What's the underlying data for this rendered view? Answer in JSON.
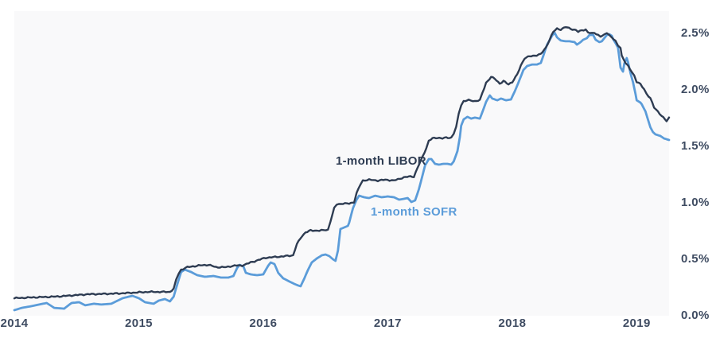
{
  "page": {
    "background": "#ffffff",
    "plot_background": "#f9f9fa"
  },
  "chart_data": {
    "type": "line",
    "title": "",
    "xlabel": "",
    "ylabel": "",
    "grid": "off",
    "legend_position": "inline-annotations",
    "x_axis": {
      "range": [
        2014,
        2019.26
      ],
      "ticks": [
        {
          "label": "2014",
          "value": 2014
        },
        {
          "label": "2015",
          "value": 2015
        },
        {
          "label": "2016",
          "value": 2016
        },
        {
          "label": "2017",
          "value": 2017
        },
        {
          "label": "2018",
          "value": 2018
        },
        {
          "label": "2019",
          "value": 2019
        }
      ]
    },
    "y_axis": {
      "unit": "percent",
      "range": [
        0,
        2.7
      ],
      "ticks": [
        {
          "label": "0.0%",
          "value": 0.0
        },
        {
          "label": "0.5%",
          "value": 0.5
        },
        {
          "label": "1.0%",
          "value": 1.0
        },
        {
          "label": "1.5%",
          "value": 1.5
        },
        {
          "label": "2.0%",
          "value": 2.0
        },
        {
          "label": "2.5%",
          "value": 2.5
        }
      ]
    },
    "series": [
      {
        "name": "1-month LIBOR",
        "color": "#2e3c52",
        "line_width": 2.4,
        "texture": "noisy",
        "points": [
          [
            2014.0,
            0.155
          ],
          [
            2014.14,
            0.162
          ],
          [
            2014.33,
            0.169
          ],
          [
            2014.59,
            0.19
          ],
          [
            2014.84,
            0.197
          ],
          [
            2015.07,
            0.211
          ],
          [
            2015.25,
            0.211
          ],
          [
            2015.28,
            0.239
          ],
          [
            2015.3,
            0.317
          ],
          [
            2015.32,
            0.373
          ],
          [
            2015.34,
            0.408
          ],
          [
            2015.39,
            0.43
          ],
          [
            2015.48,
            0.444
          ],
          [
            2015.56,
            0.451
          ],
          [
            2015.62,
            0.43
          ],
          [
            2015.7,
            0.43
          ],
          [
            2015.77,
            0.444
          ],
          [
            2015.83,
            0.444
          ],
          [
            2015.9,
            0.472
          ],
          [
            2015.96,
            0.493
          ],
          [
            2016.02,
            0.514
          ],
          [
            2016.11,
            0.521
          ],
          [
            2016.18,
            0.528
          ],
          [
            2016.24,
            0.535
          ],
          [
            2016.27,
            0.634
          ],
          [
            2016.31,
            0.704
          ],
          [
            2016.34,
            0.739
          ],
          [
            2016.38,
            0.754
          ],
          [
            2016.45,
            0.754
          ],
          [
            2016.52,
            0.761
          ],
          [
            2016.54,
            0.838
          ],
          [
            2016.57,
            0.951
          ],
          [
            2016.59,
            0.986
          ],
          [
            2016.64,
            0.993
          ],
          [
            2016.69,
            0.993
          ],
          [
            2016.73,
            1.007
          ],
          [
            2016.75,
            1.085
          ],
          [
            2016.78,
            1.162
          ],
          [
            2016.8,
            1.197
          ],
          [
            2016.85,
            1.204
          ],
          [
            2016.92,
            1.197
          ],
          [
            2016.98,
            1.204
          ],
          [
            2017.05,
            1.197
          ],
          [
            2017.13,
            1.225
          ],
          [
            2017.17,
            1.232
          ],
          [
            2017.21,
            1.232
          ],
          [
            2017.24,
            1.31
          ],
          [
            2017.28,
            1.408
          ],
          [
            2017.31,
            1.486
          ],
          [
            2017.33,
            1.549
          ],
          [
            2017.36,
            1.57
          ],
          [
            2017.4,
            1.577
          ],
          [
            2017.44,
            1.57
          ],
          [
            2017.47,
            1.577
          ],
          [
            2017.51,
            1.577
          ],
          [
            2017.53,
            1.613
          ],
          [
            2017.55,
            1.669
          ],
          [
            2017.57,
            1.789
          ],
          [
            2017.59,
            1.866
          ],
          [
            2017.61,
            1.901
          ],
          [
            2017.65,
            1.908
          ],
          [
            2017.7,
            1.901
          ],
          [
            2017.74,
            1.908
          ],
          [
            2017.76,
            1.972
          ],
          [
            2017.79,
            2.063
          ],
          [
            2017.83,
            2.113
          ],
          [
            2017.86,
            2.099
          ],
          [
            2017.9,
            2.056
          ],
          [
            2017.93,
            2.077
          ],
          [
            2017.97,
            2.049
          ],
          [
            2018.0,
            2.07
          ],
          [
            2018.04,
            2.134
          ],
          [
            2018.07,
            2.218
          ],
          [
            2018.1,
            2.282
          ],
          [
            2018.14,
            2.296
          ],
          [
            2018.18,
            2.303
          ],
          [
            2018.23,
            2.317
          ],
          [
            2018.27,
            2.373
          ],
          [
            2018.3,
            2.444
          ],
          [
            2018.33,
            2.514
          ],
          [
            2018.36,
            2.542
          ],
          [
            2018.39,
            2.535
          ],
          [
            2018.43,
            2.556
          ],
          [
            2018.47,
            2.542
          ],
          [
            2018.51,
            2.528
          ],
          [
            2018.53,
            2.514
          ],
          [
            2018.56,
            2.528
          ],
          [
            2018.59,
            2.535
          ],
          [
            2018.61,
            2.507
          ],
          [
            2018.64,
            2.5
          ],
          [
            2018.66,
            2.507
          ],
          [
            2018.69,
            2.486
          ],
          [
            2018.71,
            2.472
          ],
          [
            2018.74,
            2.486
          ],
          [
            2018.76,
            2.507
          ],
          [
            2018.78,
            2.486
          ],
          [
            2018.8,
            2.465
          ],
          [
            2018.83,
            2.43
          ],
          [
            2018.85,
            2.394
          ],
          [
            2018.87,
            2.373
          ],
          [
            2018.88,
            2.303
          ],
          [
            2018.91,
            2.239
          ],
          [
            2018.93,
            2.211
          ],
          [
            2018.96,
            2.162
          ],
          [
            2018.98,
            2.127
          ],
          [
            2019.0,
            2.07
          ],
          [
            2019.03,
            2.049
          ],
          [
            2019.06,
            2.007
          ],
          [
            2019.08,
            1.965
          ],
          [
            2019.11,
            1.923
          ],
          [
            2019.14,
            1.845
          ],
          [
            2019.17,
            1.81
          ],
          [
            2019.2,
            1.768
          ],
          [
            2019.24,
            1.725
          ],
          [
            2019.26,
            1.754
          ]
        ]
      },
      {
        "name": "1-month SOFR",
        "color": "#5b9cd9",
        "line_width": 2.8,
        "texture": "smooth",
        "points": [
          [
            2014.0,
            0.049
          ],
          [
            2014.06,
            0.07
          ],
          [
            2014.14,
            0.085
          ],
          [
            2014.2,
            0.099
          ],
          [
            2014.26,
            0.113
          ],
          [
            2014.32,
            0.07
          ],
          [
            2014.4,
            0.063
          ],
          [
            2014.46,
            0.113
          ],
          [
            2014.52,
            0.12
          ],
          [
            2014.57,
            0.092
          ],
          [
            2014.64,
            0.106
          ],
          [
            2014.7,
            0.099
          ],
          [
            2014.78,
            0.106
          ],
          [
            2014.83,
            0.134
          ],
          [
            2014.87,
            0.155
          ],
          [
            2014.92,
            0.169
          ],
          [
            2014.95,
            0.176
          ],
          [
            2015.0,
            0.155
          ],
          [
            2015.05,
            0.12
          ],
          [
            2015.12,
            0.106
          ],
          [
            2015.16,
            0.134
          ],
          [
            2015.21,
            0.148
          ],
          [
            2015.25,
            0.127
          ],
          [
            2015.28,
            0.169
          ],
          [
            2015.31,
            0.282
          ],
          [
            2015.34,
            0.387
          ],
          [
            2015.37,
            0.408
          ],
          [
            2015.42,
            0.387
          ],
          [
            2015.47,
            0.359
          ],
          [
            2015.53,
            0.345
          ],
          [
            2015.6,
            0.352
          ],
          [
            2015.66,
            0.338
          ],
          [
            2015.72,
            0.338
          ],
          [
            2015.76,
            0.352
          ],
          [
            2015.79,
            0.423
          ],
          [
            2015.81,
            0.451
          ],
          [
            2015.84,
            0.437
          ],
          [
            2015.86,
            0.38
          ],
          [
            2015.9,
            0.366
          ],
          [
            2015.95,
            0.359
          ],
          [
            2016.0,
            0.366
          ],
          [
            2016.04,
            0.444
          ],
          [
            2016.06,
            0.472
          ],
          [
            2016.09,
            0.458
          ],
          [
            2016.12,
            0.38
          ],
          [
            2016.16,
            0.331
          ],
          [
            2016.21,
            0.303
          ],
          [
            2016.25,
            0.282
          ],
          [
            2016.28,
            0.268
          ],
          [
            2016.3,
            0.261
          ],
          [
            2016.33,
            0.331
          ],
          [
            2016.36,
            0.408
          ],
          [
            2016.39,
            0.472
          ],
          [
            2016.43,
            0.507
          ],
          [
            2016.47,
            0.535
          ],
          [
            2016.5,
            0.542
          ],
          [
            2016.53,
            0.528
          ],
          [
            2016.56,
            0.5
          ],
          [
            2016.58,
            0.486
          ],
          [
            2016.6,
            0.577
          ],
          [
            2016.62,
            0.768
          ],
          [
            2016.65,
            0.782
          ],
          [
            2016.68,
            0.796
          ],
          [
            2016.69,
            0.824
          ],
          [
            2016.72,
            0.951
          ],
          [
            2016.75,
            1.028
          ],
          [
            2016.77,
            1.063
          ],
          [
            2016.81,
            1.049
          ],
          [
            2016.85,
            1.042
          ],
          [
            2016.9,
            1.063
          ],
          [
            2016.95,
            1.049
          ],
          [
            2017.0,
            1.056
          ],
          [
            2017.05,
            1.049
          ],
          [
            2017.09,
            1.028
          ],
          [
            2017.13,
            1.035
          ],
          [
            2017.16,
            1.042
          ],
          [
            2017.19,
            1.007
          ],
          [
            2017.22,
            1.021
          ],
          [
            2017.25,
            1.12
          ],
          [
            2017.28,
            1.246
          ],
          [
            2017.3,
            1.331
          ],
          [
            2017.33,
            1.387
          ],
          [
            2017.35,
            1.387
          ],
          [
            2017.38,
            1.345
          ],
          [
            2017.41,
            1.338
          ],
          [
            2017.45,
            1.345
          ],
          [
            2017.48,
            1.345
          ],
          [
            2017.51,
            1.338
          ],
          [
            2017.53,
            1.366
          ],
          [
            2017.56,
            1.458
          ],
          [
            2017.58,
            1.585
          ],
          [
            2017.59,
            1.683
          ],
          [
            2017.61,
            1.739
          ],
          [
            2017.64,
            1.761
          ],
          [
            2017.67,
            1.746
          ],
          [
            2017.7,
            1.754
          ],
          [
            2017.74,
            1.746
          ],
          [
            2017.76,
            1.803
          ],
          [
            2017.79,
            1.894
          ],
          [
            2017.82,
            1.951
          ],
          [
            2017.84,
            1.923
          ],
          [
            2017.88,
            1.908
          ],
          [
            2017.91,
            1.923
          ],
          [
            2017.95,
            1.908
          ],
          [
            2017.99,
            1.915
          ],
          [
            2018.02,
            1.986
          ],
          [
            2018.06,
            2.092
          ],
          [
            2018.09,
            2.176
          ],
          [
            2018.12,
            2.211
          ],
          [
            2018.16,
            2.225
          ],
          [
            2018.2,
            2.225
          ],
          [
            2018.23,
            2.239
          ],
          [
            2018.25,
            2.303
          ],
          [
            2018.28,
            2.401
          ],
          [
            2018.32,
            2.479
          ],
          [
            2018.34,
            2.507
          ],
          [
            2018.36,
            2.465
          ],
          [
            2018.39,
            2.437
          ],
          [
            2018.43,
            2.43
          ],
          [
            2018.46,
            2.43
          ],
          [
            2018.5,
            2.423
          ],
          [
            2018.52,
            2.401
          ],
          [
            2018.55,
            2.423
          ],
          [
            2018.57,
            2.444
          ],
          [
            2018.6,
            2.458
          ],
          [
            2018.62,
            2.486
          ],
          [
            2018.65,
            2.486
          ],
          [
            2018.67,
            2.444
          ],
          [
            2018.7,
            2.423
          ],
          [
            2018.72,
            2.43
          ],
          [
            2018.74,
            2.458
          ],
          [
            2018.76,
            2.486
          ],
          [
            2018.78,
            2.493
          ],
          [
            2018.8,
            2.479
          ],
          [
            2018.81,
            2.451
          ],
          [
            2018.83,
            2.415
          ],
          [
            2018.85,
            2.373
          ],
          [
            2018.86,
            2.289
          ],
          [
            2018.87,
            2.197
          ],
          [
            2018.89,
            2.162
          ],
          [
            2018.9,
            2.232
          ],
          [
            2018.92,
            2.282
          ],
          [
            2018.93,
            2.246
          ],
          [
            2018.95,
            2.148
          ],
          [
            2018.97,
            2.07
          ],
          [
            2018.99,
            1.965
          ],
          [
            2019.0,
            1.908
          ],
          [
            2019.03,
            1.887
          ],
          [
            2019.04,
            1.873
          ],
          [
            2019.07,
            1.81
          ],
          [
            2019.09,
            1.739
          ],
          [
            2019.11,
            1.669
          ],
          [
            2019.13,
            1.627
          ],
          [
            2019.15,
            1.606
          ],
          [
            2019.19,
            1.592
          ],
          [
            2019.22,
            1.57
          ],
          [
            2019.26,
            1.556
          ]
        ]
      }
    ]
  }
}
